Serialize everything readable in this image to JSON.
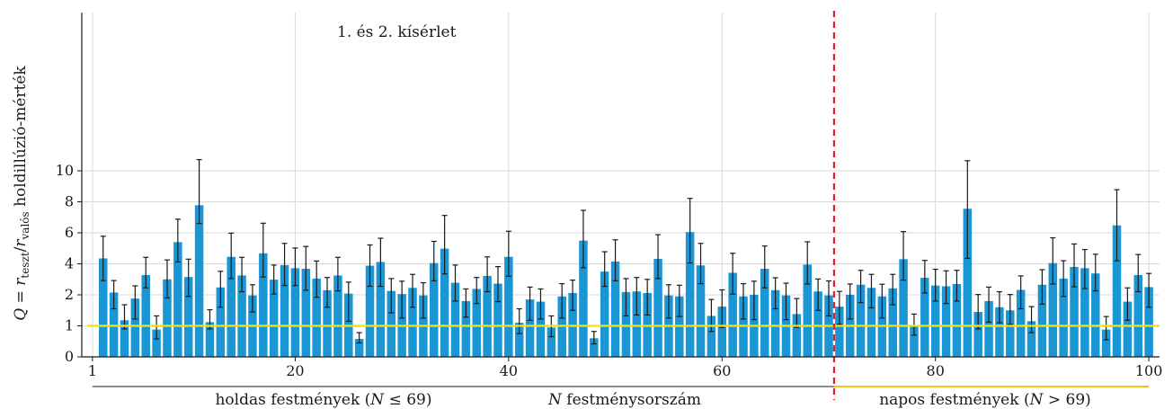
{
  "chart_data": {
    "type": "bar",
    "annotation": "1. és 2. kísérlet",
    "ylabel_parts": {
      "q": "Q",
      "eq": " = ",
      "r1": "r",
      "sub1": "teszt",
      "slash": "/",
      "r2": "r",
      "sub2": "valós",
      "tail": " holdillúzió-mérték"
    },
    "xlabel_parts": {
      "n": "N",
      "tail": " festménysorszám"
    },
    "group_labels": {
      "moon": {
        "pre": "holdas festmények (",
        "n": "N",
        "rel": " ≤ 69)"
      },
      "sun": {
        "pre": "napos festmények (",
        "n": "N",
        "rel": " > 69)"
      }
    },
    "x_ticks": [
      1,
      20,
      40,
      60,
      80,
      100
    ],
    "y_ticks": [
      0,
      1,
      2,
      4,
      6,
      8,
      10
    ],
    "xlim": [
      0,
      101
    ],
    "ylim": [
      0,
      11
    ],
    "y_scale": "piecewise: 0–1 and 1–2 each occupy one full interval; above 2 linear",
    "reference_line_y": 1,
    "divider_x": 70.5,
    "colors": {
      "bar": "#1b96d4",
      "error_bar": "#1a1a1a",
      "reference_line": "#f2e40c",
      "divider": "#e0202a",
      "grid": "#d9d9d9",
      "moon_group_line": "#8c8c8c",
      "sun_group_line": "#f2c31c"
    },
    "grid": true,
    "series": [
      {
        "x": [
          2,
          3,
          4,
          5,
          6,
          7,
          8,
          9,
          10,
          11,
          12,
          13,
          14,
          15,
          16,
          17,
          18,
          19,
          20,
          21,
          22,
          23,
          24,
          25,
          26,
          27,
          28,
          29,
          30,
          31,
          32,
          33,
          34,
          35,
          36,
          37,
          38,
          39,
          40,
          41,
          42,
          43,
          44,
          45,
          46,
          47,
          48,
          49,
          50,
          51,
          52,
          53,
          54,
          55,
          56,
          57,
          58,
          59,
          60,
          61,
          62,
          63,
          64,
          65,
          66,
          67,
          68,
          69,
          70,
          71,
          72,
          73,
          74,
          75,
          76,
          77,
          78,
          79,
          80,
          81,
          82,
          83,
          84,
          85,
          86,
          87,
          88,
          89,
          90,
          91,
          92,
          93,
          94,
          95,
          96,
          97,
          98,
          99,
          100
        ],
        "values": [
          4.35,
          2.15,
          1.18,
          1.88,
          3.28,
          0.88,
          3.0,
          5.4,
          3.15,
          7.78,
          1.12,
          2.48,
          4.45,
          3.25,
          1.98,
          4.68,
          2.98,
          3.92,
          3.72,
          3.68,
          3.05,
          2.3,
          3.25,
          2.08,
          0.58,
          3.88,
          4.12,
          2.25,
          2.05,
          2.45,
          1.98,
          4.05,
          4.98,
          2.78,
          1.8,
          2.38,
          3.22,
          2.72,
          4.45,
          1.1,
          1.85,
          1.78,
          0.95,
          1.95,
          2.12,
          5.5,
          0.6,
          3.5,
          4.15,
          2.18,
          2.22,
          2.12,
          4.32,
          1.98,
          1.95,
          6.05,
          3.9,
          1.32,
          1.62,
          3.42,
          1.95,
          2.0,
          3.68,
          2.3,
          1.98,
          1.38,
          3.95,
          2.22,
          1.98,
          1.62,
          2.0,
          2.65,
          2.45,
          1.95,
          2.42,
          4.3,
          1.0,
          3.1,
          2.6,
          2.55,
          2.7,
          7.55,
          1.45,
          1.8,
          1.6,
          1.5,
          2.32,
          1.15,
          2.65,
          4.05,
          3.05,
          3.8,
          3.72,
          3.38,
          0.88,
          6.48,
          1.78,
          3.28,
          2.5
        ],
        "err_low": [
          2.92,
          1.55,
          0.9,
          1.22,
          2.45,
          0.58,
          1.9,
          4.12,
          1.95,
          6.6,
          0.9,
          1.6,
          3.05,
          2.2,
          1.45,
          3.15,
          2.05,
          2.6,
          2.6,
          2.3,
          1.92,
          1.6,
          2.25,
          1.15,
          0.45,
          2.55,
          2.55,
          1.42,
          1.25,
          1.6,
          1.25,
          2.9,
          3.35,
          1.8,
          1.28,
          1.72,
          2.2,
          1.78,
          3.2,
          0.75,
          1.18,
          1.22,
          0.65,
          1.25,
          1.5,
          3.75,
          0.42,
          2.55,
          2.9,
          1.32,
          1.35,
          1.35,
          3.05,
          1.25,
          1.3,
          4.05,
          2.72,
          0.82,
          0.95,
          2.05,
          1.22,
          1.2,
          2.45,
          1.55,
          1.2,
          0.95,
          2.7,
          1.5,
          1.32,
          1.05,
          1.22,
          1.75,
          1.58,
          1.25,
          1.68,
          2.95,
          0.7,
          2.12,
          1.8,
          1.72,
          1.8,
          4.35,
          0.9,
          1.12,
          1.1,
          1.05,
          1.55,
          0.78,
          1.7,
          2.7,
          1.95,
          2.52,
          2.4,
          2.25,
          0.55,
          4.2,
          1.18,
          2.2,
          1.6
        ],
        "err_high": [
          5.78,
          2.92,
          1.68,
          2.58,
          4.42,
          1.32,
          4.25,
          6.88,
          4.3,
          10.72,
          1.52,
          3.52,
          5.98,
          4.42,
          2.65,
          6.62,
          3.92,
          5.32,
          5.02,
          5.12,
          4.18,
          3.12,
          4.42,
          2.82,
          0.78,
          5.22,
          5.65,
          3.05,
          2.88,
          3.32,
          2.78,
          5.45,
          7.12,
          3.92,
          2.38,
          3.12,
          4.45,
          3.82,
          6.1,
          1.55,
          2.5,
          2.38,
          1.32,
          2.72,
          2.95,
          7.45,
          0.82,
          4.78,
          5.55,
          3.05,
          3.12,
          3.0,
          5.88,
          2.65,
          2.62,
          8.22,
          5.32,
          1.85,
          2.32,
          4.68,
          2.72,
          2.88,
          5.15,
          3.1,
          2.75,
          1.88,
          5.42,
          3.02,
          2.9,
          2.22,
          2.7,
          3.58,
          3.32,
          2.68,
          3.32,
          6.08,
          1.38,
          4.22,
          3.65,
          3.55,
          3.58,
          10.65,
          2.02,
          2.5,
          2.2,
          2.02,
          3.22,
          1.62,
          3.62,
          5.68,
          4.2,
          5.28,
          4.92,
          4.62,
          1.3,
          8.78,
          2.45,
          4.6,
          3.38
        ]
      }
    ]
  }
}
